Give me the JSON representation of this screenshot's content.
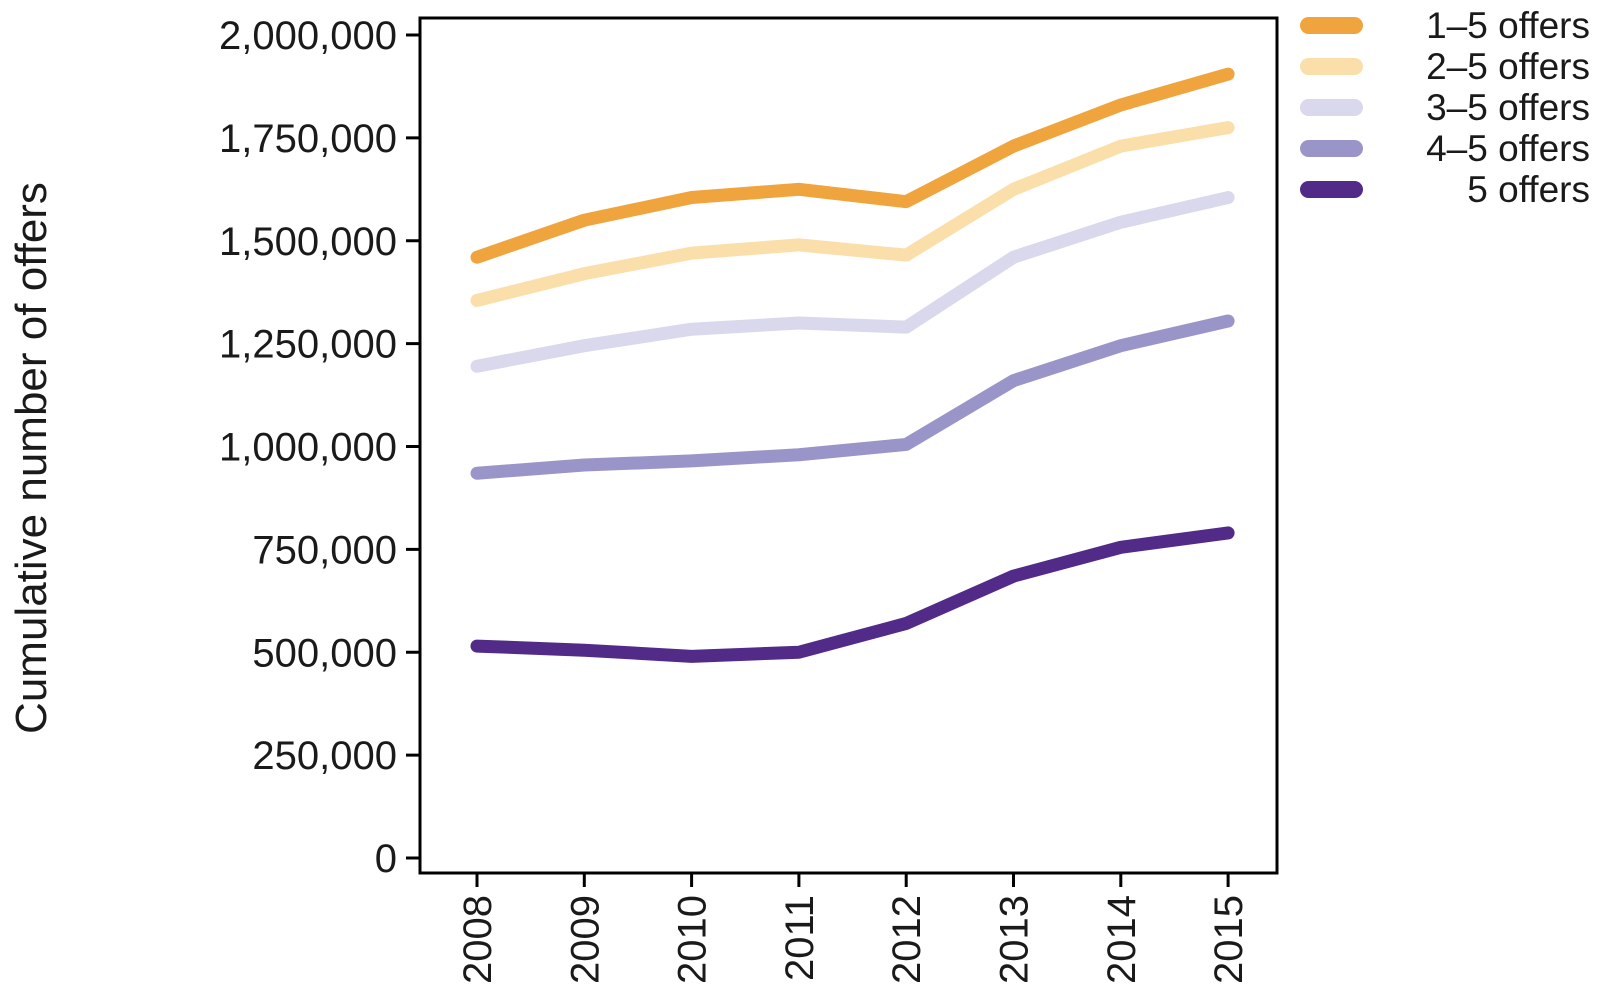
{
  "chart_data": {
    "type": "line",
    "ylabel": "Cumulative number of offers",
    "x": [
      "2008",
      "2009",
      "2010",
      "2011",
      "2012",
      "2013",
      "2014",
      "2015"
    ],
    "ylim": [
      0,
      2000000
    ],
    "y_tick_interval": 250000,
    "y_tick_labels": [
      "0",
      "250,000",
      "500,000",
      "750,000",
      "1,000,000",
      "1,250,000",
      "1,500,000",
      "1,750,000",
      "2,000,000"
    ],
    "grid": false,
    "legend_position": "top-right-outside",
    "series": [
      {
        "name": "1–5 offers",
        "color": "#F0A43E",
        "values": [
          1460000,
          1550000,
          1605000,
          1625000,
          1595000,
          1730000,
          1830000,
          1905000
        ]
      },
      {
        "name": "2–5 offers",
        "color": "#FADFAA",
        "values": [
          1355000,
          1420000,
          1470000,
          1490000,
          1465000,
          1625000,
          1730000,
          1775000
        ]
      },
      {
        "name": "3–5 offers",
        "color": "#D9D8EC",
        "values": [
          1195000,
          1245000,
          1285000,
          1300000,
          1290000,
          1460000,
          1545000,
          1605000
        ]
      },
      {
        "name": "4–5 offers",
        "color": "#9A95C8",
        "values": [
          935000,
          955000,
          965000,
          980000,
          1005000,
          1160000,
          1245000,
          1305000
        ]
      },
      {
        "name": "5 offers",
        "color": "#512B87",
        "values": [
          515000,
          505000,
          490000,
          500000,
          570000,
          685000,
          755000,
          790000
        ]
      }
    ]
  },
  "colors": {
    "axis": "#000000",
    "text": "#1A1A1A",
    "background": "#FFFFFF"
  }
}
